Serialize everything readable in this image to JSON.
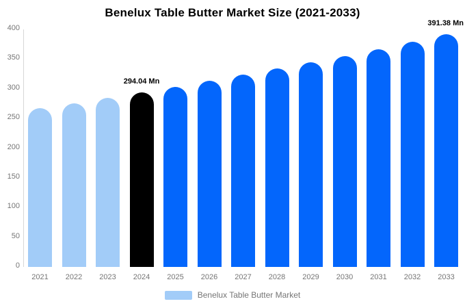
{
  "chart": {
    "title": "Benelux Table Butter Market Size (2021-2033)",
    "legend": {
      "label": "Benelux Table Butter Market",
      "swatch_color": "#A2CCF8"
    }
  },
  "chart_data": {
    "type": "bar",
    "title": "Benelux Table Butter Market Size (2021-2033)",
    "xlabel": "",
    "ylabel": "",
    "categories": [
      "2021",
      "2022",
      "2023",
      "2024",
      "2025",
      "2026",
      "2027",
      "2028",
      "2029",
      "2030",
      "2031",
      "2032",
      "2033"
    ],
    "values": [
      267.4,
      276.0,
      284.9,
      294.04,
      303.5,
      313.3,
      323.4,
      333.8,
      344.5,
      355.6,
      367.1,
      378.9,
      391.38
    ],
    "bar_colors": [
      "#A2CCF8",
      "#A2CCF8",
      "#A2CCF8",
      "#000000",
      "#0366FC",
      "#0366FC",
      "#0366FC",
      "#0366FC",
      "#0366FC",
      "#0366FC",
      "#0366FC",
      "#0366FC",
      "#0366FC"
    ],
    "annotations": [
      {
        "category": "2024",
        "text": "294.04 Mn"
      },
      {
        "category": "2033",
        "text": "391.38 Mn"
      }
    ],
    "ylim": [
      0,
      400
    ],
    "yticks": [
      0,
      50,
      100,
      150,
      200,
      250,
      300,
      350,
      400
    ],
    "grid": false,
    "legend_position": "bottom",
    "colors": {
      "historical_bar": "#A2CCF8",
      "base_year_bar": "#000000",
      "forecast_bar": "#0366FC",
      "axis_line": "#d6d6d6",
      "tick_text": "#757575",
      "title_text": "#000000"
    }
  }
}
